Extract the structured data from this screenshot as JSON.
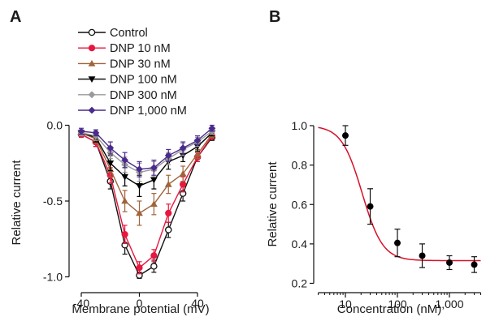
{
  "chart_data": [
    {
      "panel": "A",
      "type": "line",
      "xlabel": "Membrane potential (mV)",
      "ylabel": "Relative current",
      "xlim": [
        -45,
        55
      ],
      "ylim": [
        -1.05,
        0.05
      ],
      "xticks": [
        -40,
        0,
        40
      ],
      "xtick_labels": [
        "-40",
        "0",
        "40"
      ],
      "yticks": [
        0.0,
        -0.5,
        -1.0
      ],
      "ytick_labels": [
        "0.0",
        "-0.5",
        "-1.0"
      ],
      "legend_position": "top-left",
      "x": [
        -40,
        -30,
        -20,
        -10,
        0,
        10,
        20,
        30,
        40,
        50
      ],
      "series": [
        {
          "name": "Control",
          "color": "#111111",
          "marker": "open-circle",
          "values": [
            -0.06,
            -0.11,
            -0.37,
            -0.79,
            -0.99,
            -0.93,
            -0.69,
            -0.45,
            -0.21,
            -0.08
          ],
          "errors": [
            0.02,
            0.03,
            0.05,
            0.06,
            0.02,
            0.04,
            0.05,
            0.05,
            0.03,
            0.02
          ]
        },
        {
          "name": "DNP 10 nM",
          "color": "#e8173f",
          "marker": "filled-circle",
          "values": [
            -0.06,
            -0.11,
            -0.33,
            -0.72,
            -0.94,
            -0.86,
            -0.58,
            -0.39,
            -0.21,
            -0.07
          ],
          "errors": [
            0.02,
            0.03,
            0.05,
            0.06,
            0.04,
            0.04,
            0.06,
            0.05,
            0.03,
            0.02
          ]
        },
        {
          "name": "DNP 30 nM",
          "color": "#a0643a",
          "marker": "triangle-up",
          "values": [
            -0.05,
            -0.09,
            -0.29,
            -0.5,
            -0.58,
            -0.52,
            -0.39,
            -0.32,
            -0.19,
            -0.06
          ],
          "errors": [
            0.02,
            0.03,
            0.05,
            0.07,
            0.08,
            0.07,
            0.06,
            0.05,
            0.03,
            0.02
          ]
        },
        {
          "name": "DNP 100 nM",
          "color": "#000000",
          "marker": "triangle-down",
          "values": [
            -0.05,
            -0.08,
            -0.25,
            -0.34,
            -0.4,
            -0.36,
            -0.24,
            -0.2,
            -0.14,
            -0.05
          ],
          "errors": [
            0.02,
            0.03,
            0.05,
            0.06,
            0.07,
            0.06,
            0.05,
            0.04,
            0.03,
            0.02
          ]
        },
        {
          "name": "DNP 300 nM",
          "color": "#9a9a9a",
          "marker": "diamond",
          "values": [
            -0.05,
            -0.07,
            -0.18,
            -0.26,
            -0.31,
            -0.29,
            -0.22,
            -0.16,
            -0.11,
            -0.04
          ],
          "errors": [
            0.02,
            0.03,
            0.04,
            0.05,
            0.06,
            0.05,
            0.04,
            0.04,
            0.03,
            0.02
          ]
        },
        {
          "name": "DNP 1,000 nM",
          "color": "#4a2a8c",
          "marker": "diamond",
          "values": [
            -0.04,
            -0.05,
            -0.15,
            -0.23,
            -0.29,
            -0.28,
            -0.2,
            -0.15,
            -0.1,
            -0.02
          ],
          "errors": [
            0.02,
            0.02,
            0.04,
            0.05,
            0.05,
            0.05,
            0.04,
            0.04,
            0.03,
            0.02
          ]
        }
      ]
    },
    {
      "panel": "B",
      "type": "scatter",
      "xlabel": "Concentration (nM)",
      "ylabel": "Relative current",
      "xscale": "log",
      "xlim": [
        3,
        4000
      ],
      "ylim": [
        0.2,
        1.0
      ],
      "xticks": [
        10,
        100,
        1000
      ],
      "xtick_labels": [
        "10",
        "100",
        "1,000"
      ],
      "yticks": [
        0.2,
        0.4,
        0.6,
        0.8,
        1.0
      ],
      "ytick_labels": [
        "0.2",
        "0.4",
        "0.6",
        "0.8",
        "1.0"
      ],
      "x": [
        10,
        30,
        100,
        300,
        1000,
        3000
      ],
      "y": [
        0.95,
        0.59,
        0.405,
        0.34,
        0.305,
        0.295
      ],
      "errors": [
        0.05,
        0.09,
        0.07,
        0.06,
        0.035,
        0.04
      ],
      "point_color": "#000000",
      "fit": {
        "type": "hill",
        "ic50": 21,
        "hill": 2.2,
        "bottom": 0.315,
        "top": 1.0,
        "color": "#d7102a"
      }
    }
  ]
}
